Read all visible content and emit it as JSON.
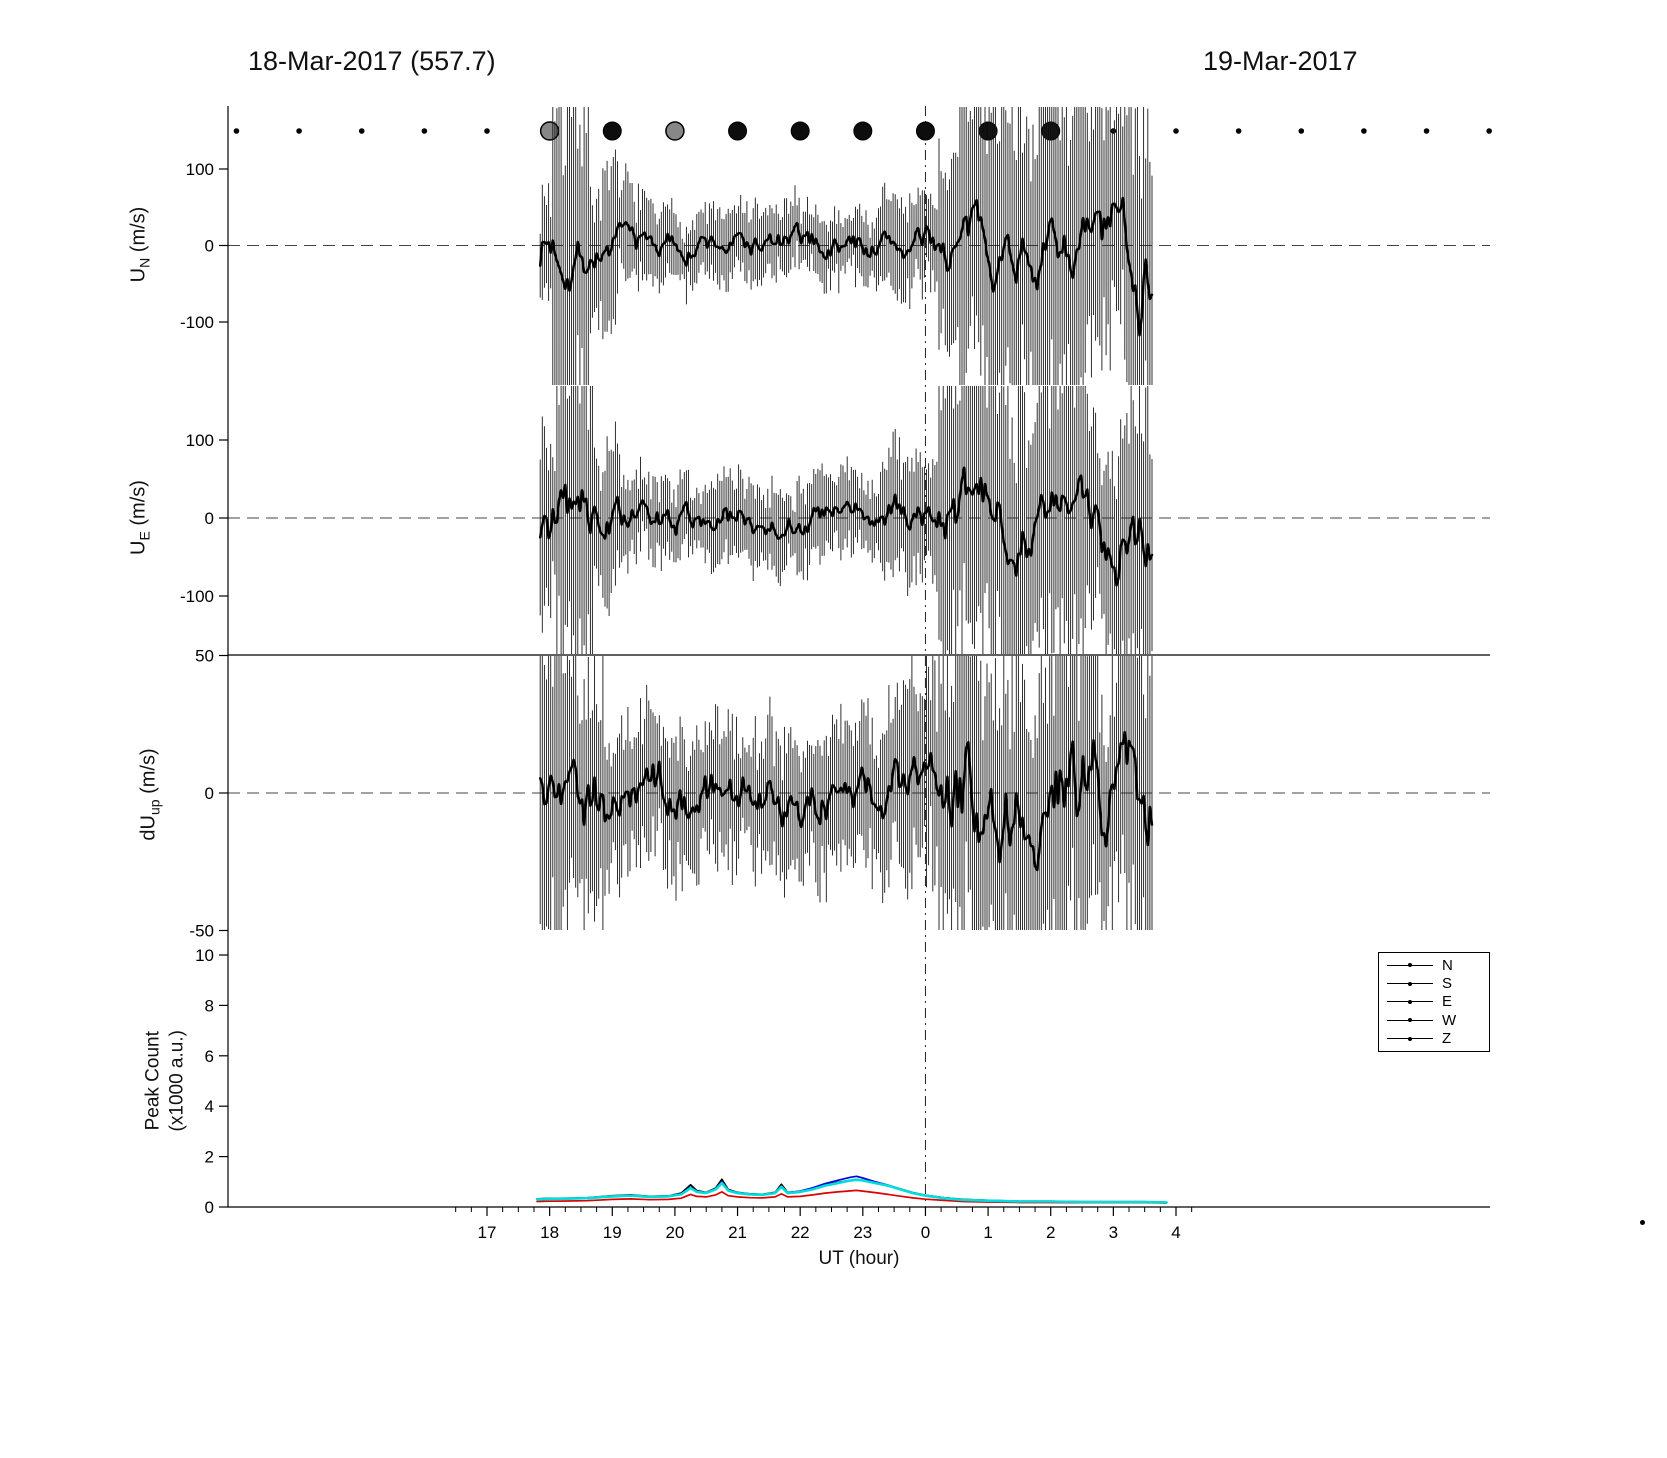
{
  "titles": {
    "left": "18-Mar-2017 (557.7)",
    "right": "19-Mar-2017"
  },
  "xlabel": "UT (hour)",
  "axis_labels": {
    "un": {
      "prefix": "U",
      "sub": "N",
      "unit": " (m/s)"
    },
    "ue": {
      "prefix": "U",
      "sub": "E",
      "unit": " (m/s)"
    },
    "dup": {
      "prefix": "dU",
      "sub": "up",
      "unit": " (m/s)"
    },
    "peak": {
      "line1": "Peak Count",
      "line2": "(x1000 a.u.)"
    }
  },
  "legend": {
    "items": [
      "N",
      "S",
      "E",
      "W",
      "Z"
    ]
  },
  "chart_data": {
    "type": "line",
    "subtype": "errorbar-timeseries-multipanel",
    "x_axis": {
      "label": "UT (hour)",
      "xlim_hours": [
        12.87,
        33.0
      ],
      "midnight_t": 24
    },
    "x_ticks": [
      {
        "t": 17,
        "label": "17"
      },
      {
        "t": 18,
        "label": "18"
      },
      {
        "t": 19,
        "label": "19"
      },
      {
        "t": 20,
        "label": "20"
      },
      {
        "t": 21,
        "label": "21"
      },
      {
        "t": 22,
        "label": "22"
      },
      {
        "t": 23,
        "label": "23"
      },
      {
        "t": 24,
        "label": "0"
      },
      {
        "t": 25,
        "label": "1"
      },
      {
        "t": 26,
        "label": "2"
      },
      {
        "t": 27,
        "label": "3"
      },
      {
        "t": 28,
        "label": "4"
      }
    ],
    "top_dots": [
      [
        13,
        "s"
      ],
      [
        14,
        "s"
      ],
      [
        15,
        "s"
      ],
      [
        16,
        "s"
      ],
      [
        17,
        "s"
      ],
      [
        18,
        "g"
      ],
      [
        19,
        "b"
      ],
      [
        20,
        "g"
      ],
      [
        21,
        "b"
      ],
      [
        22,
        "b"
      ],
      [
        23,
        "b"
      ],
      [
        24,
        "b"
      ],
      [
        25,
        "b"
      ],
      [
        26,
        "b"
      ],
      [
        27,
        "s"
      ],
      [
        28,
        "s"
      ],
      [
        29,
        "s"
      ],
      [
        30,
        "s"
      ],
      [
        31,
        "s"
      ],
      [
        32,
        "s"
      ],
      [
        33,
        "s"
      ]
    ],
    "data_time_range": [
      17.85,
      27.65
    ],
    "panels": [
      {
        "name": "U_N",
        "units": "m/s",
        "ylim": [
          -180,
          180
        ],
        "yticks": [
          [
            100,
            "100"
          ],
          [
            0,
            "0"
          ],
          [
            -100,
            "-100"
          ]
        ],
        "mean_level": 0,
        "error_envelope": [
          [
            17.85,
            18.05,
            70
          ],
          [
            18.05,
            18.65,
            210
          ],
          [
            18.65,
            19.1,
            90
          ],
          [
            19.1,
            19.5,
            60
          ],
          [
            19.5,
            23.3,
            42
          ],
          [
            23.3,
            24.2,
            60
          ],
          [
            24.2,
            24.55,
            110
          ],
          [
            24.55,
            26.55,
            200
          ],
          [
            26.55,
            27.25,
            150
          ],
          [
            27.25,
            27.65,
            230
          ]
        ],
        "mean_jitter": [
          [
            17.85,
            18.65,
            60
          ],
          [
            18.65,
            19.5,
            35
          ],
          [
            19.5,
            23.3,
            28
          ],
          [
            23.3,
            24.2,
            32
          ],
          [
            24.2,
            26.55,
            55
          ],
          [
            26.55,
            27.25,
            75
          ],
          [
            27.25,
            27.65,
            120
          ]
        ]
      },
      {
        "name": "U_E",
        "units": "m/s",
        "ylim": [
          -175,
          170
        ],
        "yticks": [
          [
            100,
            "100"
          ],
          [
            0,
            "0"
          ],
          [
            -100,
            "-100"
          ]
        ],
        "mean_level": 0,
        "error_envelope": [
          [
            17.85,
            18.1,
            110
          ],
          [
            18.1,
            18.7,
            200
          ],
          [
            18.7,
            19.2,
            85
          ],
          [
            19.2,
            23.3,
            48
          ],
          [
            23.3,
            24.2,
            75
          ],
          [
            24.2,
            26.6,
            185
          ],
          [
            26.6,
            27.2,
            130
          ],
          [
            27.2,
            27.65,
            210
          ]
        ],
        "mean_jitter": [
          [
            17.85,
            18.7,
            70
          ],
          [
            18.7,
            19.2,
            40
          ],
          [
            19.2,
            23.3,
            30
          ],
          [
            23.3,
            24.2,
            35
          ],
          [
            24.2,
            26.6,
            60
          ],
          [
            26.6,
            27.65,
            80
          ]
        ]
      },
      {
        "name": "dU_up",
        "units": "m/s",
        "ylim": [
          -50,
          50
        ],
        "yticks": [
          [
            50,
            "50"
          ],
          [
            0,
            "0"
          ],
          [
            -50,
            "-50"
          ]
        ],
        "mean_level": 0,
        "error_envelope": [
          [
            17.85,
            18.35,
            60
          ],
          [
            18.35,
            18.9,
            42
          ],
          [
            18.9,
            23.3,
            24
          ],
          [
            23.3,
            24.2,
            34
          ],
          [
            24.2,
            26.55,
            58
          ],
          [
            26.55,
            27.2,
            46
          ],
          [
            27.2,
            27.65,
            65
          ]
        ],
        "mean_jitter": [
          [
            17.85,
            18.9,
            22
          ],
          [
            18.9,
            23.3,
            15
          ],
          [
            23.3,
            24.2,
            18
          ],
          [
            24.2,
            27.65,
            28
          ]
        ]
      }
    ],
    "peak_count": {
      "name": "Peak Count",
      "units": "x1000 a.u.",
      "ylim": [
        0,
        10
      ],
      "yticks": [
        [
          10,
          "10"
        ],
        [
          8,
          "8"
        ],
        [
          6,
          "6"
        ],
        [
          4,
          "4"
        ],
        [
          2,
          "2"
        ],
        [
          0,
          "0"
        ]
      ],
      "t": [
        17.8,
        18.0,
        18.3,
        18.6,
        19.0,
        19.3,
        19.6,
        19.9,
        20.1,
        20.25,
        20.35,
        20.5,
        20.65,
        20.75,
        20.85,
        21.0,
        21.2,
        21.4,
        21.6,
        21.7,
        21.8,
        22.0,
        22.2,
        22.4,
        22.6,
        22.8,
        22.9,
        23.0,
        23.2,
        23.4,
        23.6,
        23.8,
        24.0,
        24.3,
        24.6,
        25.0,
        25.5,
        26.0,
        26.5,
        27.0,
        27.5,
        27.85
      ],
      "series": [
        {
          "name": "N",
          "color": "#000000",
          "values": [
            0.32,
            0.34,
            0.35,
            0.37,
            0.45,
            0.48,
            0.42,
            0.44,
            0.55,
            0.88,
            0.65,
            0.58,
            0.75,
            1.1,
            0.7,
            0.58,
            0.52,
            0.5,
            0.58,
            0.9,
            0.58,
            0.62,
            0.72,
            0.88,
            0.98,
            1.06,
            1.1,
            1.06,
            0.96,
            0.86,
            0.72,
            0.57,
            0.47,
            0.37,
            0.3,
            0.26,
            0.23,
            0.23,
            0.21,
            0.21,
            0.21,
            0.19
          ]
        },
        {
          "name": "S",
          "color": "#0000dd",
          "values": [
            0.3,
            0.32,
            0.33,
            0.35,
            0.43,
            0.46,
            0.41,
            0.43,
            0.52,
            0.78,
            0.62,
            0.56,
            0.72,
            1.0,
            0.67,
            0.56,
            0.51,
            0.49,
            0.56,
            0.82,
            0.56,
            0.63,
            0.76,
            0.93,
            1.06,
            1.18,
            1.22,
            1.15,
            1.0,
            0.87,
            0.71,
            0.56,
            0.46,
            0.36,
            0.29,
            0.25,
            0.22,
            0.22,
            0.2,
            0.2,
            0.2,
            0.18
          ]
        },
        {
          "name": "W",
          "color": "#00aa00",
          "values": [
            0.3,
            0.32,
            0.33,
            0.35,
            0.42,
            0.45,
            0.4,
            0.42,
            0.5,
            0.75,
            0.6,
            0.55,
            0.7,
            0.95,
            0.65,
            0.55,
            0.5,
            0.48,
            0.55,
            0.8,
            0.55,
            0.6,
            0.7,
            0.85,
            0.95,
            1.05,
            1.08,
            1.05,
            0.95,
            0.85,
            0.7,
            0.55,
            0.45,
            0.35,
            0.28,
            0.25,
            0.22,
            0.22,
            0.2,
            0.2,
            0.2,
            0.18
          ]
        },
        {
          "name": "E",
          "color": "#dd0000",
          "values": [
            0.22,
            0.23,
            0.24,
            0.25,
            0.3,
            0.32,
            0.29,
            0.3,
            0.35,
            0.5,
            0.42,
            0.4,
            0.48,
            0.6,
            0.45,
            0.4,
            0.37,
            0.36,
            0.4,
            0.52,
            0.4,
            0.42,
            0.48,
            0.55,
            0.6,
            0.64,
            0.66,
            0.63,
            0.57,
            0.5,
            0.43,
            0.36,
            0.31,
            0.26,
            0.22,
            0.2,
            0.18,
            0.18,
            0.17,
            0.17,
            0.17,
            0.16
          ]
        },
        {
          "name": "Z",
          "color": "#00dddd",
          "values": [
            0.3,
            0.32,
            0.33,
            0.35,
            0.42,
            0.45,
            0.4,
            0.42,
            0.5,
            0.75,
            0.6,
            0.55,
            0.7,
            0.95,
            0.65,
            0.55,
            0.5,
            0.48,
            0.55,
            0.8,
            0.55,
            0.6,
            0.7,
            0.85,
            0.95,
            1.05,
            1.08,
            1.05,
            0.95,
            0.85,
            0.7,
            0.55,
            0.45,
            0.35,
            0.28,
            0.25,
            0.22,
            0.22,
            0.2,
            0.2,
            0.2,
            0.18
          ]
        }
      ]
    }
  }
}
